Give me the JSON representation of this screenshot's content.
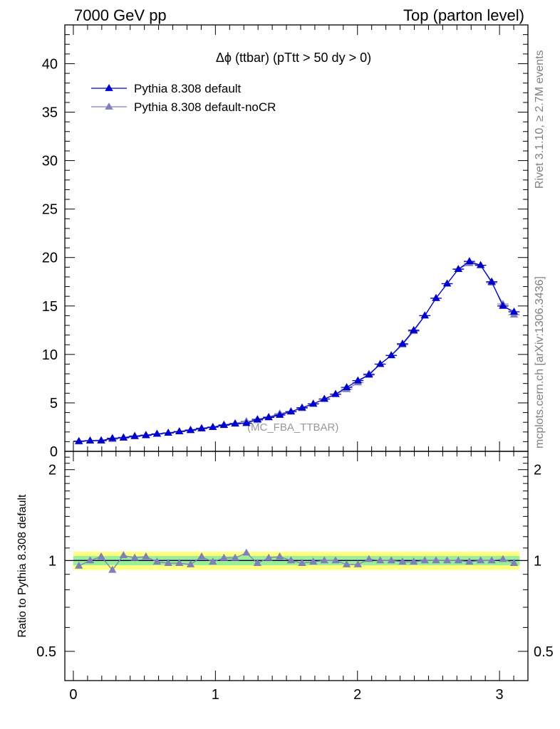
{
  "header": {
    "left": "7000 GeV pp",
    "right": "Top (parton level)"
  },
  "side_labels": {
    "rivet": "Rivet 3.1.10, ≥ 2.7M events",
    "mcplots": "mcplots.cern.ch [arXiv:1306.3436]"
  },
  "chart_data": [
    {
      "type": "line",
      "title": "Δϕ (ttbar) (pTtt > 50 dy > 0)",
      "annotation": "(MC_FBA_TTBAR)",
      "xlabel": "",
      "ylabel": "",
      "xlim": [
        -0.06,
        3.2
      ],
      "ylim": [
        0,
        44
      ],
      "yticks": [
        0,
        5,
        10,
        15,
        20,
        25,
        30,
        35,
        40
      ],
      "xticks": [
        0,
        1,
        2,
        3
      ],
      "legend_position": "top-left",
      "x": [
        0.039,
        0.118,
        0.196,
        0.275,
        0.353,
        0.432,
        0.511,
        0.589,
        0.668,
        0.746,
        0.825,
        0.903,
        0.982,
        1.06,
        1.139,
        1.218,
        1.296,
        1.375,
        1.453,
        1.532,
        1.61,
        1.689,
        1.767,
        1.846,
        1.924,
        2.003,
        2.081,
        2.16,
        2.238,
        2.317,
        2.396,
        2.474,
        2.553,
        2.631,
        2.71,
        2.788,
        2.867,
        2.945,
        3.024,
        3.102
      ],
      "series": [
        {
          "name": "Pythia 8.308 default",
          "color": "#0000cc",
          "values": [
            1.05,
            1.1,
            1.1,
            1.35,
            1.4,
            1.55,
            1.65,
            1.8,
            1.9,
            2.05,
            2.2,
            2.35,
            2.5,
            2.7,
            2.85,
            2.9,
            3.3,
            3.5,
            3.75,
            4.1,
            4.5,
            4.9,
            5.4,
            5.9,
            6.6,
            7.3,
            7.9,
            9.0,
            9.9,
            11.1,
            12.5,
            14.0,
            15.8,
            17.3,
            18.8,
            19.6,
            19.2,
            17.5,
            15.0,
            14.4
          ]
        },
        {
          "name": "Pythia 8.308 default-noCR",
          "color": "#8080b8",
          "values": [
            1.0,
            1.1,
            1.15,
            1.25,
            1.45,
            1.6,
            1.7,
            1.8,
            1.9,
            2.05,
            2.15,
            2.4,
            2.5,
            2.75,
            2.9,
            3.1,
            3.2,
            3.55,
            3.9,
            4.1,
            4.45,
            4.9,
            5.4,
            5.9,
            6.4,
            7.1,
            8.0,
            9.0,
            9.9,
            11.0,
            12.4,
            14.0,
            15.8,
            17.3,
            18.8,
            19.4,
            19.2,
            17.4,
            15.2,
            14.1
          ]
        }
      ]
    },
    {
      "type": "line",
      "ylabel": "Ratio to Pythia 8.308 default",
      "xlabel": "",
      "scale": "log",
      "ylim": [
        0.4,
        2.3
      ],
      "yticks": [
        0.5,
        1,
        2
      ],
      "xticks": [
        0,
        1,
        2,
        3
      ],
      "band_colors": {
        "inner": "#99ee99",
        "outer": "#ffff80"
      },
      "reference_line": 1,
      "series": [
        {
          "name": "Pythia 8.308 default-noCR",
          "color": "#8080b8",
          "values": [
            0.96,
            1.0,
            1.03,
            0.93,
            1.04,
            1.02,
            1.03,
            0.99,
            0.98,
            0.98,
            0.97,
            1.03,
            0.99,
            1.02,
            1.02,
            1.06,
            0.98,
            1.02,
            1.03,
            1.0,
            0.98,
            0.99,
            1.0,
            1.0,
            0.97,
            0.97,
            1.01,
            1.0,
            1.0,
            0.99,
            0.99,
            1.0,
            1.0,
            1.0,
            1.0,
            0.99,
            1.0,
            1.0,
            1.01,
            0.98
          ]
        }
      ]
    }
  ]
}
